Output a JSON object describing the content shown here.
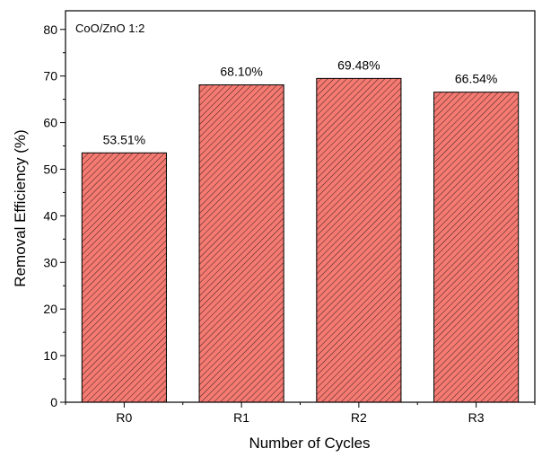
{
  "chart_data": {
    "type": "bar",
    "xlabel": "Number of Cycles",
    "ylabel": "Removal Efficiency (%)",
    "annotation": "CoO/ZnO 1:2",
    "categories": [
      "R0",
      "R1",
      "R2",
      "R3"
    ],
    "values": [
      53.51,
      68.1,
      69.48,
      66.54
    ],
    "data_labels": [
      "53.51%",
      "68.10%",
      "69.48%",
      "66.54%"
    ],
    "ylim": [
      0,
      84
    ],
    "yticks": [
      0,
      10,
      20,
      30,
      40,
      50,
      60,
      70,
      80
    ],
    "ytick_labels": [
      "0",
      "10",
      "20",
      "30",
      "40",
      "50",
      "60",
      "70",
      "80"
    ],
    "grid": false,
    "bar_color": "#f47a72",
    "bar_edge_color": "#000000",
    "bar_hatch": "diagonal"
  }
}
